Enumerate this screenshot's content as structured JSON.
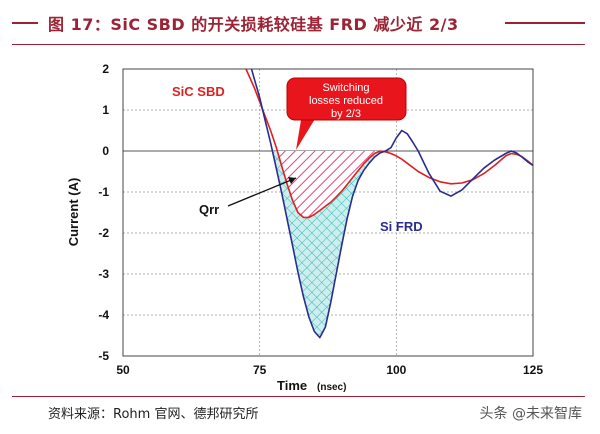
{
  "title": "图 17：SiC SBD 的开关损耗较硅基 FRD 减少近 2/3",
  "source": "资料来源：Rohm 官网、德邦研究所",
  "watermark": "头条 @未来智库",
  "colors": {
    "title": "#9b2335",
    "sic_curve": "#e02020",
    "si_curve": "#2a2d8f",
    "callout": "#e8151c",
    "pink_hatch": "#e0457a",
    "cyan_hatch": "#2fb8b0",
    "cyan_fill": "#cdeeee"
  },
  "chart_data": {
    "type": "line",
    "xlabel": "Time",
    "xlabel_unit": "(nsec)",
    "ylabel": "Current (A)",
    "xlim": [
      50,
      125
    ],
    "ylim": [
      -5,
      2
    ],
    "xticks": [
      50,
      75,
      100,
      125
    ],
    "yticks": [
      2,
      1,
      0,
      -1,
      -2,
      -3,
      -4,
      -5
    ],
    "grid": true,
    "series": [
      {
        "name": "SiC SBD",
        "color": "#e02020",
        "x": [
          72.5,
          74,
          75,
          76,
          77,
          78,
          79,
          80,
          81,
          82,
          83,
          84,
          85,
          86,
          87,
          88,
          89,
          90,
          91,
          92,
          93,
          94,
          95,
          96,
          97,
          98,
          99,
          100,
          101,
          102,
          104,
          106,
          108,
          110,
          112,
          114,
          116,
          118,
          120,
          121,
          122,
          123,
          124,
          125
        ],
        "y": [
          2.0,
          1.55,
          1.2,
          0.85,
          0.5,
          0.1,
          -0.35,
          -0.8,
          -1.2,
          -1.5,
          -1.62,
          -1.62,
          -1.55,
          -1.45,
          -1.35,
          -1.25,
          -1.12,
          -0.98,
          -0.82,
          -0.65,
          -0.48,
          -0.32,
          -0.18,
          -0.06,
          0.0,
          -0.02,
          -0.06,
          -0.12,
          -0.2,
          -0.3,
          -0.5,
          -0.65,
          -0.75,
          -0.8,
          -0.78,
          -0.7,
          -0.55,
          -0.35,
          -0.12,
          -0.06,
          -0.08,
          -0.14,
          -0.24,
          -0.35
        ]
      },
      {
        "name": "Si FRD",
        "color": "#2a2d8f",
        "x": [
          73.5,
          75,
          76,
          77,
          78,
          79,
          80,
          81,
          82,
          83,
          84,
          85,
          86,
          87,
          88,
          89,
          90,
          91,
          92,
          93,
          94,
          95,
          96,
          97,
          98,
          99,
          100,
          101,
          102,
          103,
          104,
          105,
          106,
          108,
          110,
          112,
          114,
          116,
          118,
          120,
          121,
          122,
          123,
          124,
          125
        ],
        "y": [
          2.0,
          1.3,
          0.75,
          0.2,
          -0.4,
          -1.0,
          -1.65,
          -2.3,
          -2.95,
          -3.55,
          -4.05,
          -4.4,
          -4.55,
          -4.3,
          -3.7,
          -3.0,
          -2.3,
          -1.65,
          -1.1,
          -0.72,
          -0.48,
          -0.3,
          -0.15,
          -0.05,
          0.0,
          0.08,
          0.32,
          0.5,
          0.42,
          0.22,
          0.0,
          -0.28,
          -0.55,
          -0.98,
          -1.1,
          -0.95,
          -0.68,
          -0.42,
          -0.22,
          -0.06,
          -0.0,
          -0.05,
          -0.15,
          -0.26,
          -0.35
        ]
      }
    ],
    "annotations": {
      "sic_label": "SiC SBD",
      "si_label": "Si FRD",
      "qrr_label": "Qrr",
      "callout": [
        "Switching",
        "losses reduced",
        "by 2/3"
      ]
    }
  }
}
